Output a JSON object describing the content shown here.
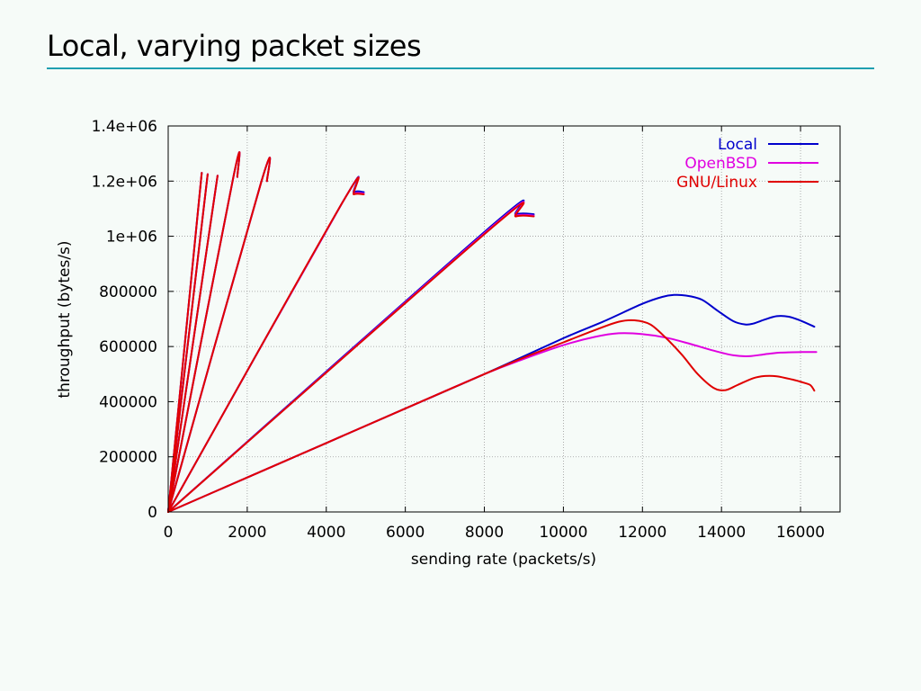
{
  "slide": {
    "title": "Local, varying packet sizes"
  },
  "chart_data": {
    "type": "line",
    "title": "",
    "xlabel": "sending rate (packets/s)",
    "ylabel": "throughput (bytes/s)",
    "xlim": [
      0,
      17000
    ],
    "ylim": [
      0,
      1400000
    ],
    "x_ticks": [
      0,
      2000,
      4000,
      6000,
      8000,
      10000,
      12000,
      14000,
      16000
    ],
    "x_tick_labels": [
      "0",
      "2000",
      "4000",
      "6000",
      "8000",
      "10000",
      "12000",
      "14000",
      "16000"
    ],
    "y_ticks": [
      0,
      200000,
      400000,
      600000,
      800000,
      1000000,
      1200000,
      1400000
    ],
    "y_tick_labels": [
      "0",
      "200000",
      "400000",
      "600000",
      "800000",
      "1e+06",
      "1.2e+06",
      "1.4e+06"
    ],
    "grid": true,
    "legend_position": "top-right",
    "series": [
      {
        "name": "Local",
        "color": "#0000cc",
        "curves": [
          [
            [
              0,
              0
            ],
            [
              850,
              1230000
            ]
          ],
          [
            [
              0,
              0
            ],
            [
              1000,
              1225000
            ]
          ],
          [
            [
              0,
              0
            ],
            [
              1250,
              1220000
            ]
          ],
          [
            [
              0,
              0
            ],
            [
              1650,
              1215000
            ],
            [
              1750,
              1215000
            ]
          ],
          [
            [
              0,
              0
            ],
            [
              2350,
              1195000
            ],
            [
              2500,
              1200000
            ]
          ],
          [
            [
              0,
              0
            ],
            [
              4400,
              1120000
            ],
            [
              4700,
              1160000
            ],
            [
              4950,
              1160000
            ]
          ],
          [
            [
              0,
              0
            ],
            [
              8200,
              1040000
            ],
            [
              8800,
              1080000
            ],
            [
              9250,
              1080000
            ]
          ],
          [
            [
              0,
              0
            ],
            [
              2000,
              125000
            ],
            [
              4000,
              250000
            ],
            [
              6000,
              375000
            ],
            [
              8000,
              500000
            ],
            [
              10000,
              630000
            ],
            [
              11000,
              690000
            ],
            [
              12000,
              755000
            ],
            [
              12500,
              780000
            ],
            [
              12800,
              787000
            ],
            [
              13100,
              785000
            ],
            [
              13500,
              770000
            ],
            [
              13900,
              730000
            ],
            [
              14300,
              692000
            ],
            [
              14600,
              680000
            ],
            [
              14800,
              683000
            ],
            [
              15100,
              698000
            ],
            [
              15400,
              710000
            ],
            [
              15700,
              708000
            ],
            [
              16000,
              694000
            ],
            [
              16350,
              672000
            ]
          ]
        ]
      },
      {
        "name": "OpenBSD",
        "color": "#e000e0",
        "curves": [
          [
            [
              0,
              0
            ],
            [
              850,
              1230000
            ]
          ],
          [
            [
              0,
              0
            ],
            [
              1000,
              1225000
            ]
          ],
          [
            [
              0,
              0
            ],
            [
              1250,
              1220000
            ]
          ],
          [
            [
              0,
              0
            ],
            [
              1650,
              1215000
            ],
            [
              1750,
              1215000
            ]
          ],
          [
            [
              0,
              0
            ],
            [
              2350,
              1195000
            ],
            [
              2500,
              1200000
            ]
          ],
          [
            [
              0,
              0
            ],
            [
              4400,
              1120000
            ],
            [
              4700,
              1155000
            ],
            [
              4950,
              1155000
            ]
          ],
          [
            [
              0,
              0
            ],
            [
              8200,
              1035000
            ],
            [
              8800,
              1075000
            ],
            [
              9250,
              1075000
            ]
          ],
          [
            [
              0,
              0
            ],
            [
              2000,
              125000
            ],
            [
              4000,
              250000
            ],
            [
              6000,
              375000
            ],
            [
              8000,
              500000
            ],
            [
              9000,
              555000
            ],
            [
              10000,
              605000
            ],
            [
              10800,
              635000
            ],
            [
              11400,
              648000
            ],
            [
              12000,
              645000
            ],
            [
              12600,
              632000
            ],
            [
              13200,
              610000
            ],
            [
              13800,
              585000
            ],
            [
              14300,
              568000
            ],
            [
              14700,
              565000
            ],
            [
              15100,
              572000
            ],
            [
              15500,
              578000
            ],
            [
              16000,
              580000
            ],
            [
              16400,
              580000
            ]
          ]
        ]
      },
      {
        "name": "GNU/Linux",
        "color": "#e00000",
        "curves": [
          [
            [
              0,
              0
            ],
            [
              850,
              1230000
            ]
          ],
          [
            [
              0,
              0
            ],
            [
              1000,
              1225000
            ]
          ],
          [
            [
              0,
              0
            ],
            [
              1250,
              1220000
            ]
          ],
          [
            [
              0,
              0
            ],
            [
              1650,
              1215000
            ],
            [
              1750,
              1215000
            ]
          ],
          [
            [
              0,
              0
            ],
            [
              2350,
              1195000
            ],
            [
              2500,
              1200000
            ]
          ],
          [
            [
              0,
              0
            ],
            [
              4400,
              1120000
            ],
            [
              4700,
              1152000
            ],
            [
              4950,
              1152000
            ]
          ],
          [
            [
              0,
              0
            ],
            [
              8200,
              1032000
            ],
            [
              8800,
              1072000
            ],
            [
              9250,
              1072000
            ]
          ],
          [
            [
              0,
              0
            ],
            [
              2000,
              125000
            ],
            [
              4000,
              250000
            ],
            [
              6000,
              375000
            ],
            [
              8000,
              500000
            ],
            [
              9000,
              560000
            ],
            [
              10000,
              615000
            ],
            [
              10800,
              660000
            ],
            [
              11400,
              690000
            ],
            [
              11800,
              695000
            ],
            [
              12200,
              680000
            ],
            [
              12600,
              630000
            ],
            [
              13000,
              570000
            ],
            [
              13400,
              500000
            ],
            [
              13800,
              450000
            ],
            [
              14100,
              442000
            ],
            [
              14400,
              460000
            ],
            [
              14800,
              485000
            ],
            [
              15100,
              493000
            ],
            [
              15400,
              492000
            ],
            [
              15800,
              480000
            ],
            [
              16100,
              468000
            ],
            [
              16250,
              460000
            ],
            [
              16350,
              440000
            ]
          ]
        ]
      }
    ]
  }
}
